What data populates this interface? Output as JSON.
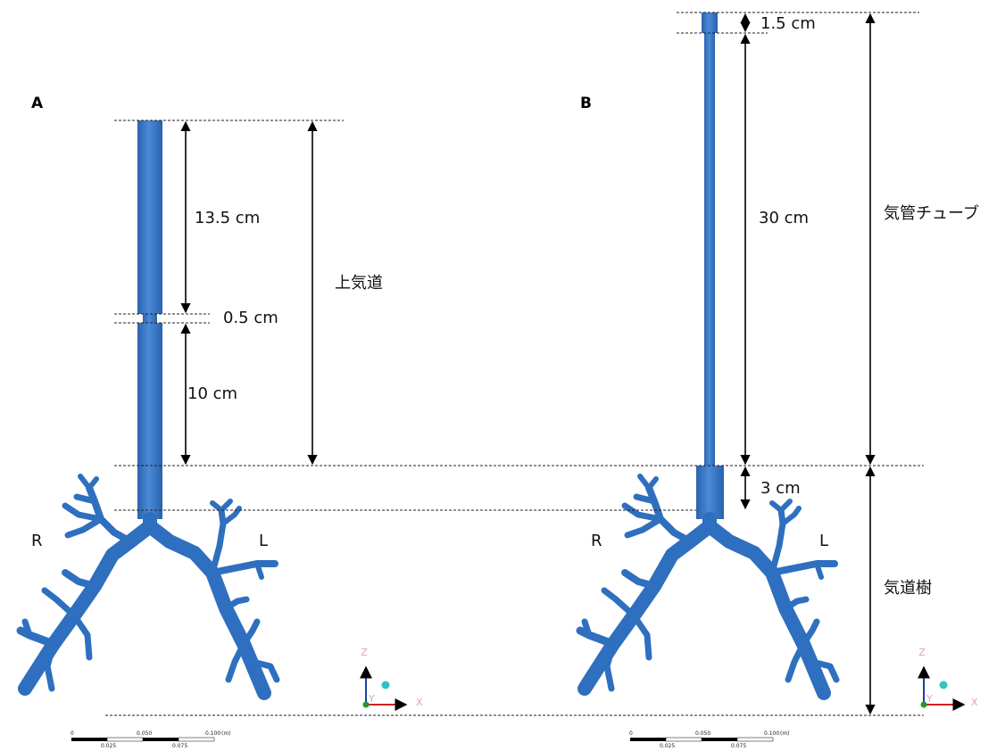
{
  "panels": [
    {
      "label": "A",
      "dimensions": [
        "13.5 cm",
        "0.5 cm",
        "10 cm"
      ],
      "region": "上気道",
      "sides": [
        "R",
        "L"
      ],
      "axes": [
        "Z",
        "X",
        "Y"
      ],
      "scale": {
        "top": [
          "0",
          "0.050",
          "0.100",
          "(m)"
        ],
        "bottom": [
          "0.025",
          "0.075"
        ]
      }
    },
    {
      "label": "B",
      "dimensions": [
        "1.5 cm",
        "30 cm",
        "3 cm"
      ],
      "regions": [
        "気管チューブ",
        "気道樹"
      ],
      "sides": [
        "R",
        "L"
      ],
      "axes": [
        "Z",
        "X",
        "Y"
      ],
      "scale": {
        "top": [
          "0",
          "0.050",
          "0.100",
          "(m)"
        ],
        "bottom": [
          "0.025",
          "0.075"
        ]
      }
    }
  ]
}
